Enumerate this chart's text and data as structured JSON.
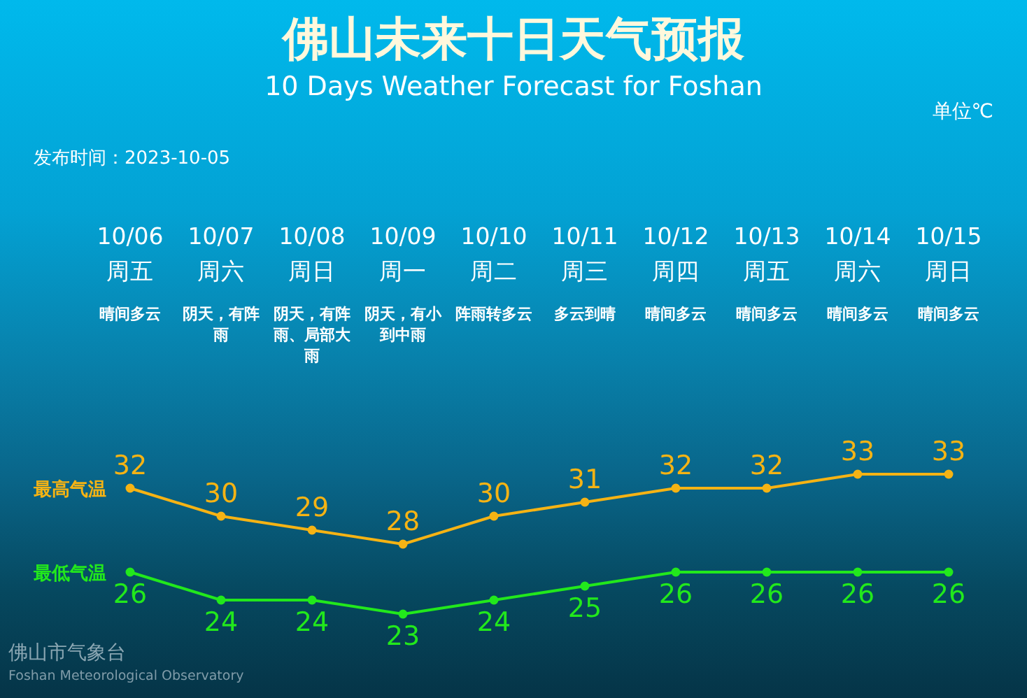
{
  "chart_data": {
    "type": "line",
    "title": "佛山未来十日天气预报",
    "subtitle": "10 Days Weather Forecast for Foshan",
    "categories": [
      "10/06\n周五",
      "10/07\n周六",
      "10/08\n周日",
      "10/09\n周一",
      "10/10\n周二",
      "10/11\n周三",
      "10/12\n周四",
      "10/13\n周五",
      "10/14\n周六",
      "10/15\n周日"
    ],
    "series": [
      {
        "name": "最高气温",
        "color": "#f5b314",
        "values": [
          32,
          30,
          29,
          28,
          30,
          31,
          32,
          32,
          33,
          33
        ]
      },
      {
        "name": "最低气温",
        "color": "#22e81c",
        "values": [
          26,
          24,
          24,
          23,
          24,
          25,
          26,
          26,
          26,
          26
        ]
      }
    ],
    "marker": "circle",
    "data_labels": true,
    "annotations": [
      "单位℃",
      "发布时间：2023-10-05",
      "佛山市气象台",
      "Foshan Meteorological Observatory",
      "晴间多云",
      "阴天，有阵雨",
      "阴天，有阵雨、局部大雨",
      "阴天，有小到中雨",
      "阵雨转多云",
      "多云到晴",
      "晴间多云",
      "晴间多云",
      "晴间多云",
      "晴间多云"
    ]
  }
}
